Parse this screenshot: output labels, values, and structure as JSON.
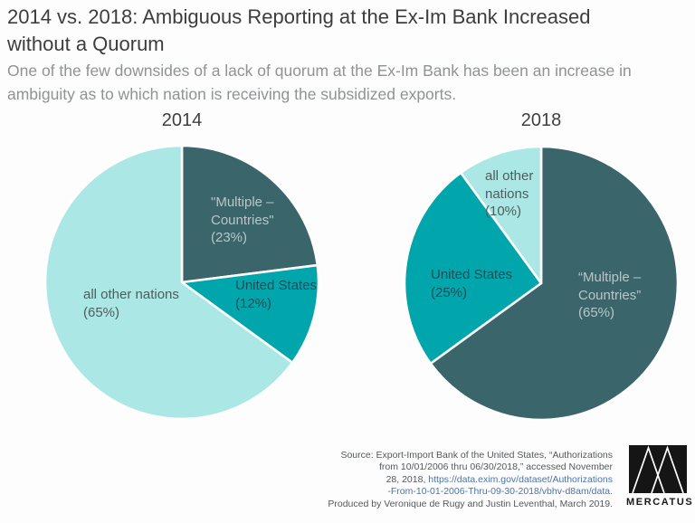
{
  "header": {
    "title_line1": "2014 vs. 2018: Ambiguous Reporting at the Ex-Im Bank Increased",
    "title_line2": "without a Quorum",
    "subtitle_line1": "One of the few downsides of a lack of quorum at the Ex-Im Bank has been an increase in",
    "subtitle_line2": "ambiguity as to which nation is receiving the subsidized exports."
  },
  "colors": {
    "dark_slice": "#3a656b",
    "teal_slice": "#00a6ac",
    "light_slice": "#abe7e4",
    "slice_border": "#ffffff",
    "label_on_dark": "#b9c6c9",
    "label_on_teal": "#1d4d57",
    "label_on_light": "#4d5c5f",
    "title_text": "#3d3d3d",
    "subtitle_text": "#8f9394",
    "source_text": "#55595b",
    "link_text": "#4b74a9"
  },
  "chart_data": [
    {
      "type": "pie",
      "title": "2014",
      "categories": [
        "\"Multiple – Countries\"",
        "United States",
        "all other nations"
      ],
      "values": [
        23,
        12,
        65
      ],
      "unit": "percent",
      "colors": [
        "#3a656b",
        "#00a6ac",
        "#abe7e4"
      ],
      "start_angle": "12 o'clock",
      "direction": "clockwise",
      "legend": "none (labels drawn on slices)",
      "slice_labels": [
        "\"Multiple –\nCountries\"\n(23%)",
        "United States\n(12%)",
        "all other nations\n(65%)"
      ]
    },
    {
      "type": "pie",
      "title": "2018",
      "categories": [
        "“Multiple – Countries”",
        "United States",
        "all other nations"
      ],
      "values": [
        65,
        25,
        10
      ],
      "unit": "percent",
      "colors": [
        "#3a656b",
        "#00a6ac",
        "#abe7e4"
      ],
      "start_angle": "12 o'clock",
      "direction": "clockwise",
      "legend": "none (labels drawn on slices)",
      "slice_labels": [
        "“Multiple –\nCountries”\n(65%)",
        "United States\n(25%)",
        "all other\nnations\n(10%)"
      ]
    }
  ],
  "source": {
    "line1": "Source: Export-Import Bank of the United States, “Authorizations",
    "line2": "from 10/01/2006 thru 06/30/2018,” accessed November",
    "line3_prefix": "28, 2018, ",
    "line3_link": "https://data.exim.gov/dataset/Authorizations",
    "line4_link": "-From-10-01-2006-Thru-09-30-2018/vbhv-d8am/data.",
    "line5": "Produced by Veronique de Rugy and Justin Leventhal, March 2019."
  },
  "logo": {
    "wordmark": "MERCATUS"
  }
}
